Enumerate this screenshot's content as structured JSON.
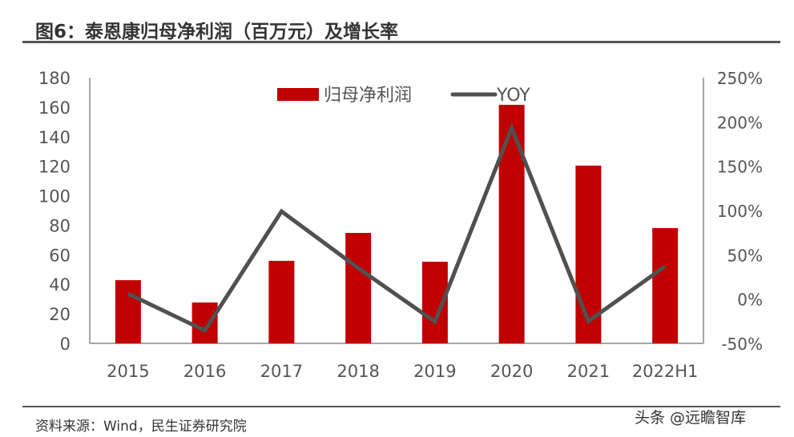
{
  "title": "图6：泰恩康归母净利润（百万元）及增长率",
  "source": "资料来源：Wind，民生证券研究院",
  "watermark": "头条 @远瞻智库",
  "chart_data": {
    "type": "bar+line",
    "categories": [
      "2015",
      "2016",
      "2017",
      "2018",
      "2019",
      "2020",
      "2021",
      "2022H1"
    ],
    "series": [
      {
        "name": "归母净利润",
        "type": "bar",
        "axis": "left",
        "color": "#C00000",
        "values": [
          42.8,
          27.7,
          55.9,
          74.8,
          55.3,
          161.6,
          120.4,
          78.1
        ]
      },
      {
        "name": "YOY",
        "type": "line",
        "axis": "right",
        "color": "#505050",
        "values": [
          6,
          -35.5,
          99,
          35,
          -25.6,
          193,
          -25,
          37
        ]
      }
    ],
    "left_axis": {
      "min": 0,
      "max": 180,
      "step": 20,
      "ticks": [
        "0",
        "20",
        "40",
        "60",
        "80",
        "100",
        "120",
        "140",
        "160",
        "180"
      ]
    },
    "right_axis": {
      "min": -50,
      "max": 250,
      "step": 50,
      "ticks": [
        "-50%",
        "0%",
        "50%",
        "100%",
        "150%",
        "200%",
        "250%"
      ]
    },
    "legend": "top-center",
    "grid": false
  }
}
